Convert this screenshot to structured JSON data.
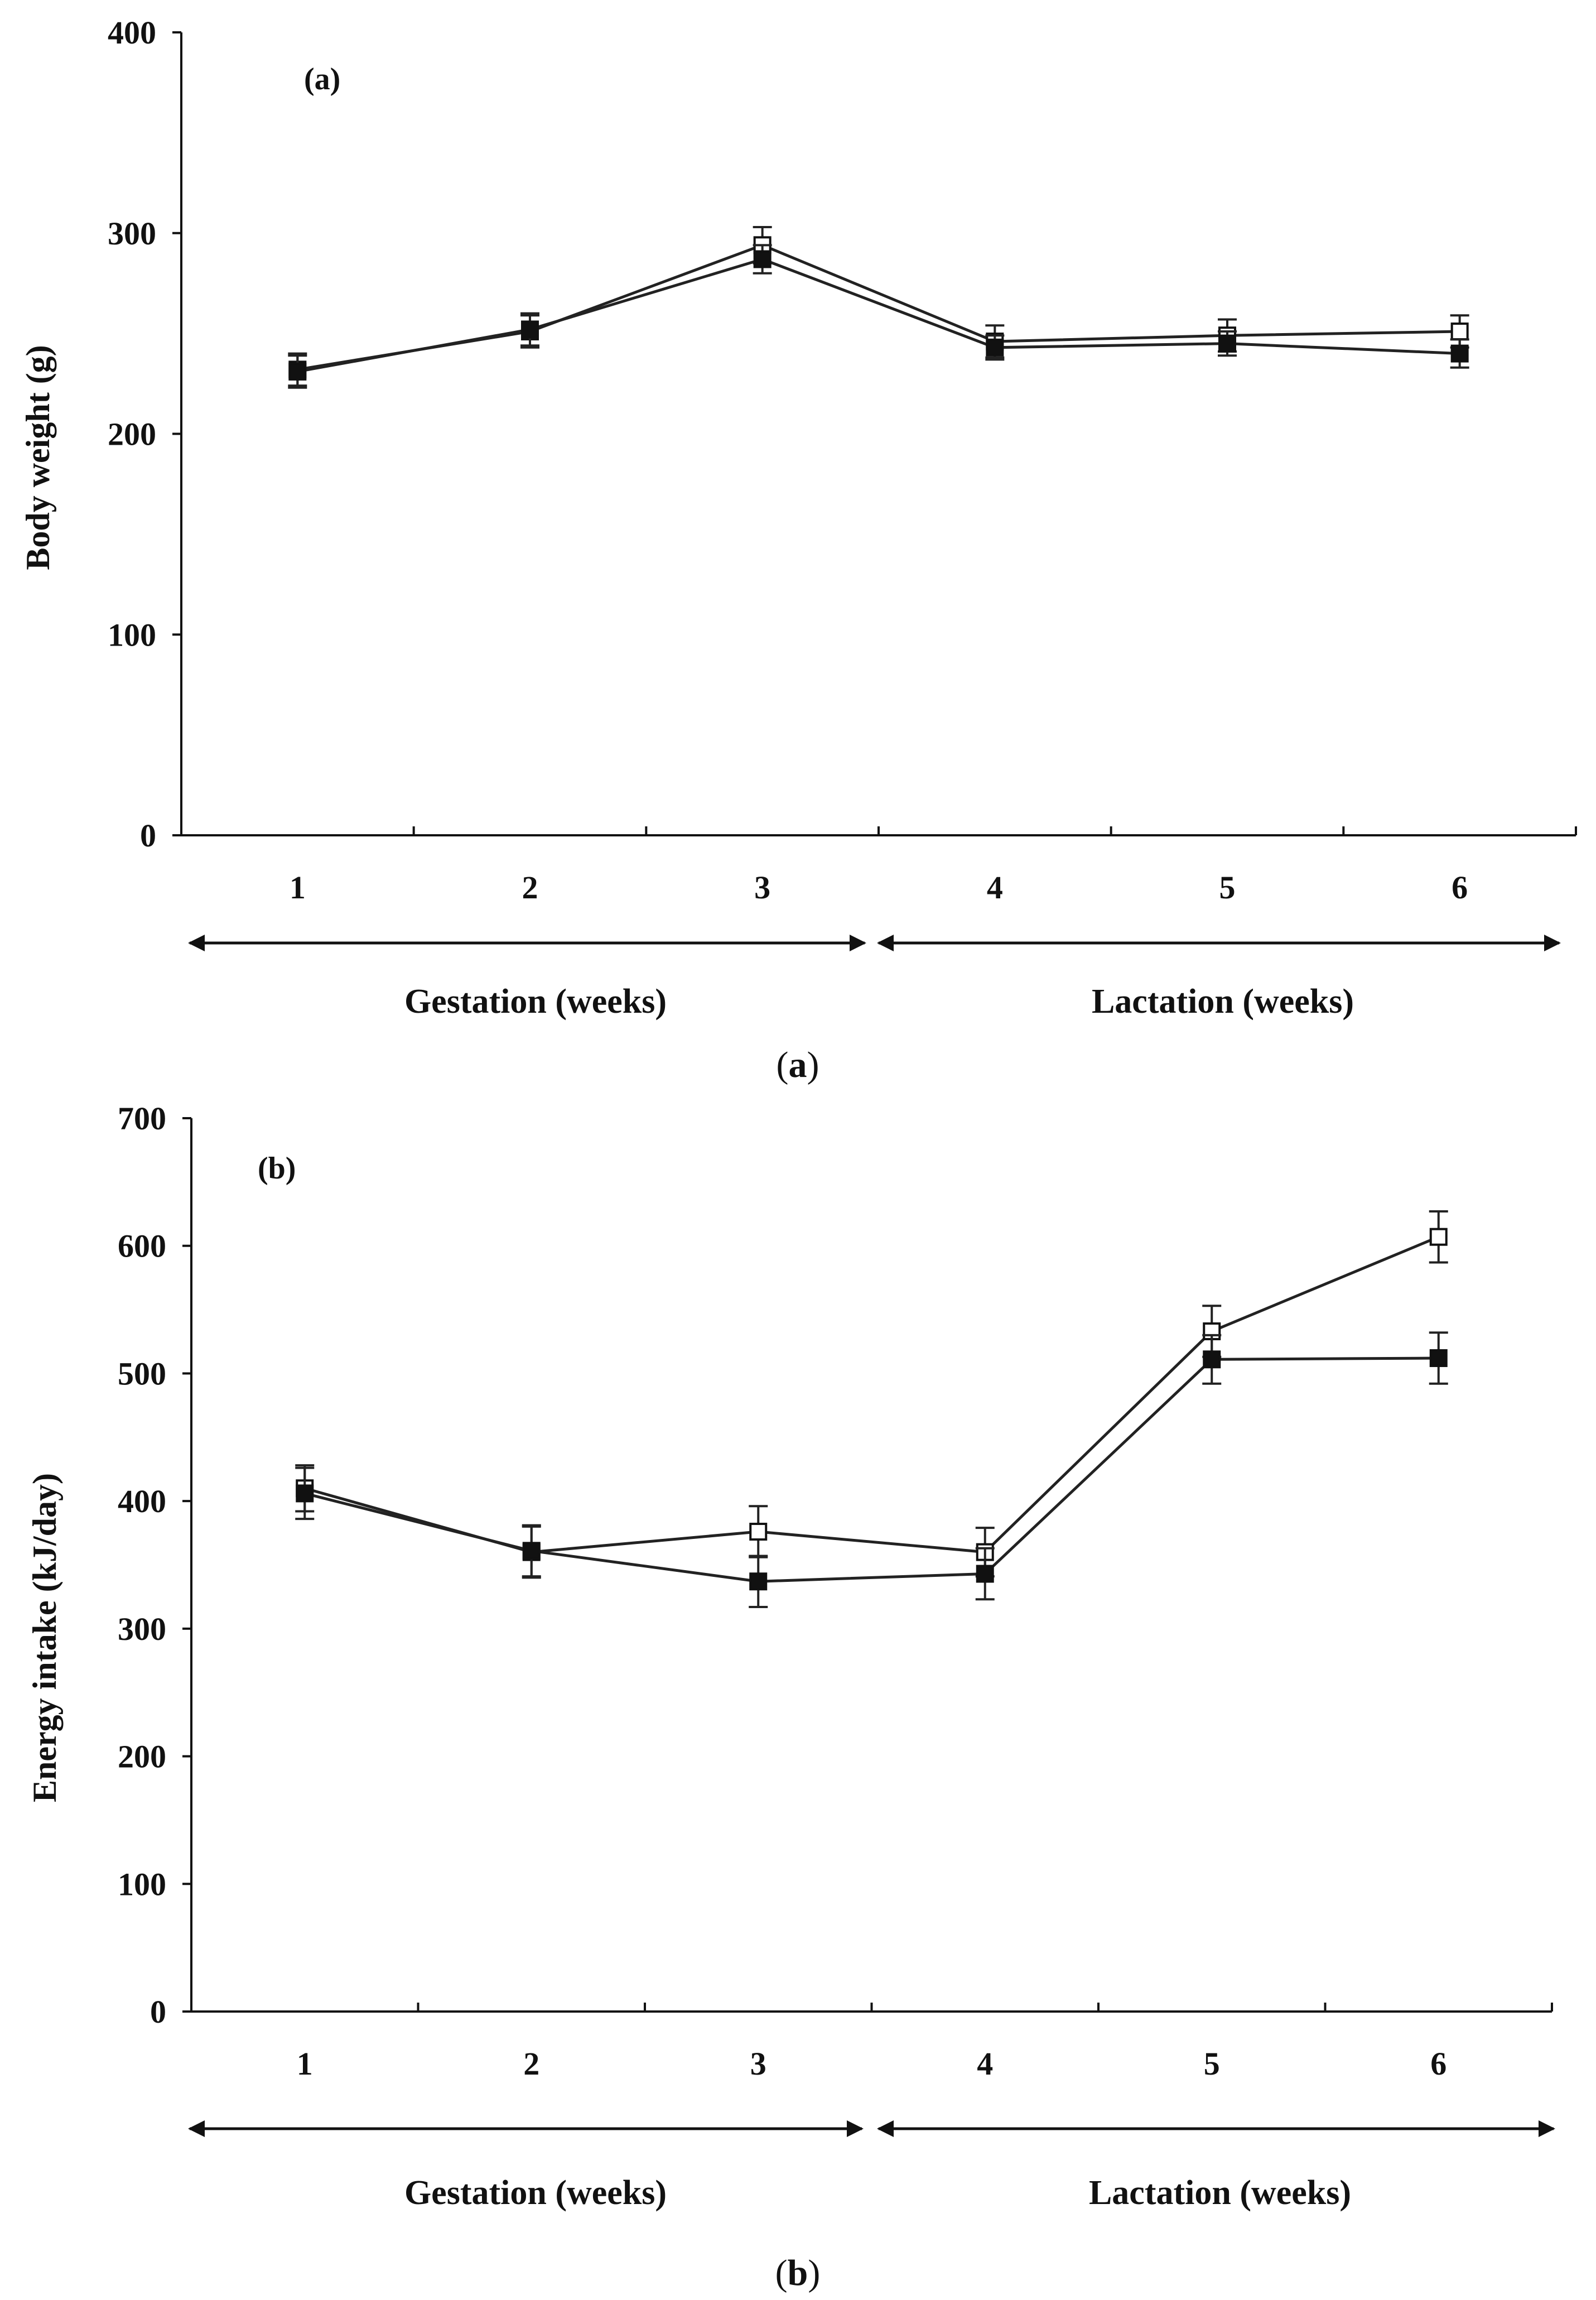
{
  "figure": {
    "panels": [
      {
        "tag": "(a)",
        "caption": {
          "open": "(",
          "letter": "a",
          "close": ")"
        },
        "phases": {
          "left": "Gestation (weeks)",
          "right": "Lactation (weeks)"
        }
      },
      {
        "tag": "(b)",
        "caption": {
          "open": "(",
          "letter": "b",
          "close": ")"
        },
        "phases": {
          "left": "Gestation (weeks)",
          "right": "Lactation (weeks)"
        }
      }
    ]
  },
  "chart_data": [
    {
      "type": "line",
      "panel": "(a)",
      "title": "",
      "xlabel": "",
      "ylabel": "Body weight (g)",
      "x": [
        1,
        2,
        3,
        4,
        5,
        6
      ],
      "x_tick_labels": [
        "1",
        "2",
        "3",
        "4",
        "5",
        "6"
      ],
      "ylim": [
        0,
        400
      ],
      "y_ticks": [
        0,
        100,
        200,
        300,
        400
      ],
      "y_tick_labels": [
        "0",
        "100",
        "200",
        "300",
        "400"
      ],
      "grid": false,
      "legend": "none",
      "series": [
        {
          "name": "open squares",
          "marker": "open-square",
          "values": [
            232,
            251,
            294,
            246,
            249,
            251
          ],
          "error": [
            8,
            8,
            9,
            8,
            8,
            8
          ]
        },
        {
          "name": "filled squares",
          "marker": "filled-square",
          "values": [
            231,
            252,
            287,
            243,
            245,
            240
          ],
          "error": [
            8,
            8,
            7,
            6,
            6,
            7
          ]
        }
      ]
    },
    {
      "type": "line",
      "panel": "(b)",
      "title": "",
      "xlabel": "",
      "ylabel": "Energy intake (kJ/day)",
      "x": [
        1,
        2,
        3,
        4,
        5,
        6
      ],
      "x_tick_labels": [
        "1",
        "2",
        "3",
        "4",
        "5",
        "6"
      ],
      "ylim": [
        0,
        700
      ],
      "y_ticks": [
        0,
        100,
        200,
        300,
        400,
        500,
        600,
        700
      ],
      "y_tick_labels": [
        "0",
        "100",
        "200",
        "300",
        "400",
        "500",
        "600",
        "700"
      ],
      "grid": false,
      "legend": "none",
      "series": [
        {
          "name": "open squares",
          "marker": "open-square",
          "values": [
            410,
            360,
            376,
            360,
            533,
            607
          ],
          "error": [
            18,
            20,
            20,
            19,
            20,
            20
          ]
        },
        {
          "name": "filled squares",
          "marker": "filled-square",
          "values": [
            406,
            361,
            337,
            343,
            511,
            512
          ],
          "error": [
            20,
            20,
            20,
            20,
            19,
            20
          ]
        }
      ]
    }
  ]
}
